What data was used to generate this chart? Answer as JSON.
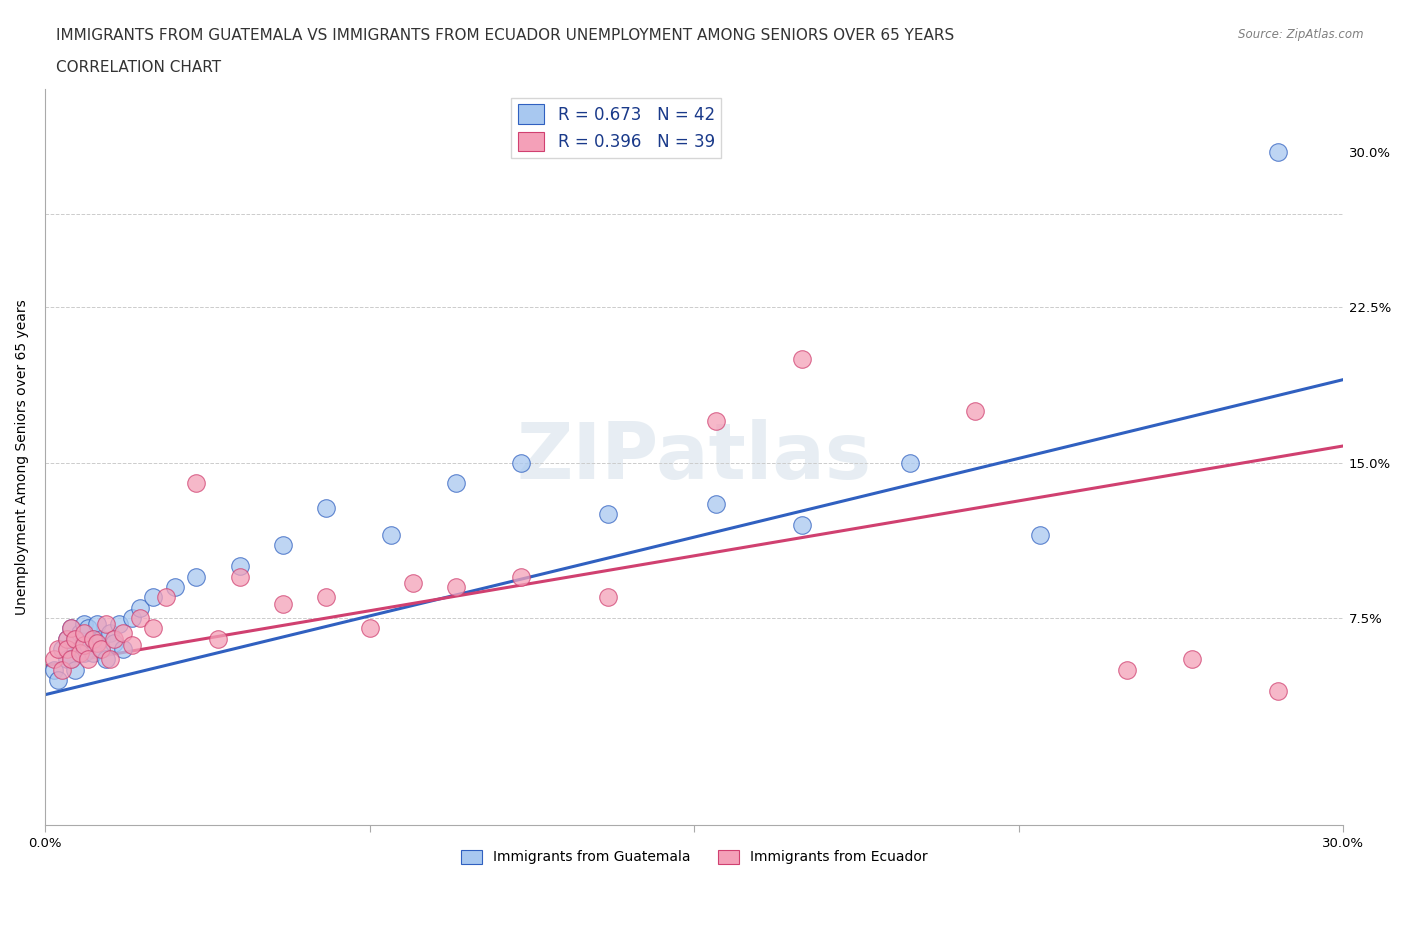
{
  "title_line1": "IMMIGRANTS FROM GUATEMALA VS IMMIGRANTS FROM ECUADOR UNEMPLOYMENT AMONG SENIORS OVER 65 YEARS",
  "title_line2": "CORRELATION CHART",
  "source": "Source: ZipAtlas.com",
  "ylabel": "Unemployment Among Seniors over 65 years",
  "xlabel_guatemala": "Immigrants from Guatemala",
  "xlabel_ecuador": "Immigrants from Ecuador",
  "xlim": [
    0.0,
    0.3
  ],
  "ylim": [
    -0.025,
    0.33
  ],
  "color_blue": "#a8c8f0",
  "color_pink": "#f4a0b8",
  "line_color_blue": "#3060c0",
  "line_color_pink": "#d04070",
  "watermark": "ZIPatlas",
  "guatemala_x": [
    0.002,
    0.003,
    0.004,
    0.005,
    0.005,
    0.006,
    0.006,
    0.007,
    0.007,
    0.008,
    0.008,
    0.009,
    0.009,
    0.01,
    0.01,
    0.011,
    0.011,
    0.012,
    0.013,
    0.013,
    0.014,
    0.015,
    0.016,
    0.017,
    0.018,
    0.02,
    0.022,
    0.025,
    0.03,
    0.035,
    0.045,
    0.055,
    0.065,
    0.08,
    0.095,
    0.11,
    0.13,
    0.155,
    0.175,
    0.2,
    0.23,
    0.285
  ],
  "guatemala_y": [
    0.05,
    0.045,
    0.06,
    0.055,
    0.065,
    0.055,
    0.07,
    0.05,
    0.065,
    0.06,
    0.068,
    0.058,
    0.072,
    0.062,
    0.07,
    0.058,
    0.065,
    0.072,
    0.065,
    0.06,
    0.055,
    0.068,
    0.063,
    0.072,
    0.06,
    0.075,
    0.08,
    0.085,
    0.09,
    0.095,
    0.1,
    0.11,
    0.128,
    0.115,
    0.14,
    0.15,
    0.125,
    0.13,
    0.12,
    0.15,
    0.115,
    0.3
  ],
  "ecuador_x": [
    0.002,
    0.003,
    0.004,
    0.005,
    0.005,
    0.006,
    0.006,
    0.007,
    0.008,
    0.009,
    0.009,
    0.01,
    0.011,
    0.012,
    0.013,
    0.014,
    0.015,
    0.016,
    0.018,
    0.02,
    0.022,
    0.025,
    0.028,
    0.035,
    0.04,
    0.045,
    0.055,
    0.065,
    0.075,
    0.085,
    0.095,
    0.11,
    0.13,
    0.155,
    0.175,
    0.215,
    0.25,
    0.265,
    0.285
  ],
  "ecuador_y": [
    0.055,
    0.06,
    0.05,
    0.065,
    0.06,
    0.055,
    0.07,
    0.065,
    0.058,
    0.062,
    0.068,
    0.055,
    0.065,
    0.063,
    0.06,
    0.072,
    0.055,
    0.065,
    0.068,
    0.062,
    0.075,
    0.07,
    0.085,
    0.14,
    0.065,
    0.095,
    0.082,
    0.085,
    0.07,
    0.092,
    0.09,
    0.095,
    0.085,
    0.17,
    0.2,
    0.175,
    0.05,
    0.055,
    0.04
  ],
  "blue_trend_x": [
    0.0,
    0.3
  ],
  "blue_trend_y": [
    0.038,
    0.19
  ],
  "pink_trend_x": [
    0.0,
    0.3
  ],
  "pink_trend_y": [
    0.052,
    0.158
  ],
  "title_fontsize": 11,
  "axis_fontsize": 10,
  "tick_fontsize": 9.5,
  "legend_fontsize": 12
}
